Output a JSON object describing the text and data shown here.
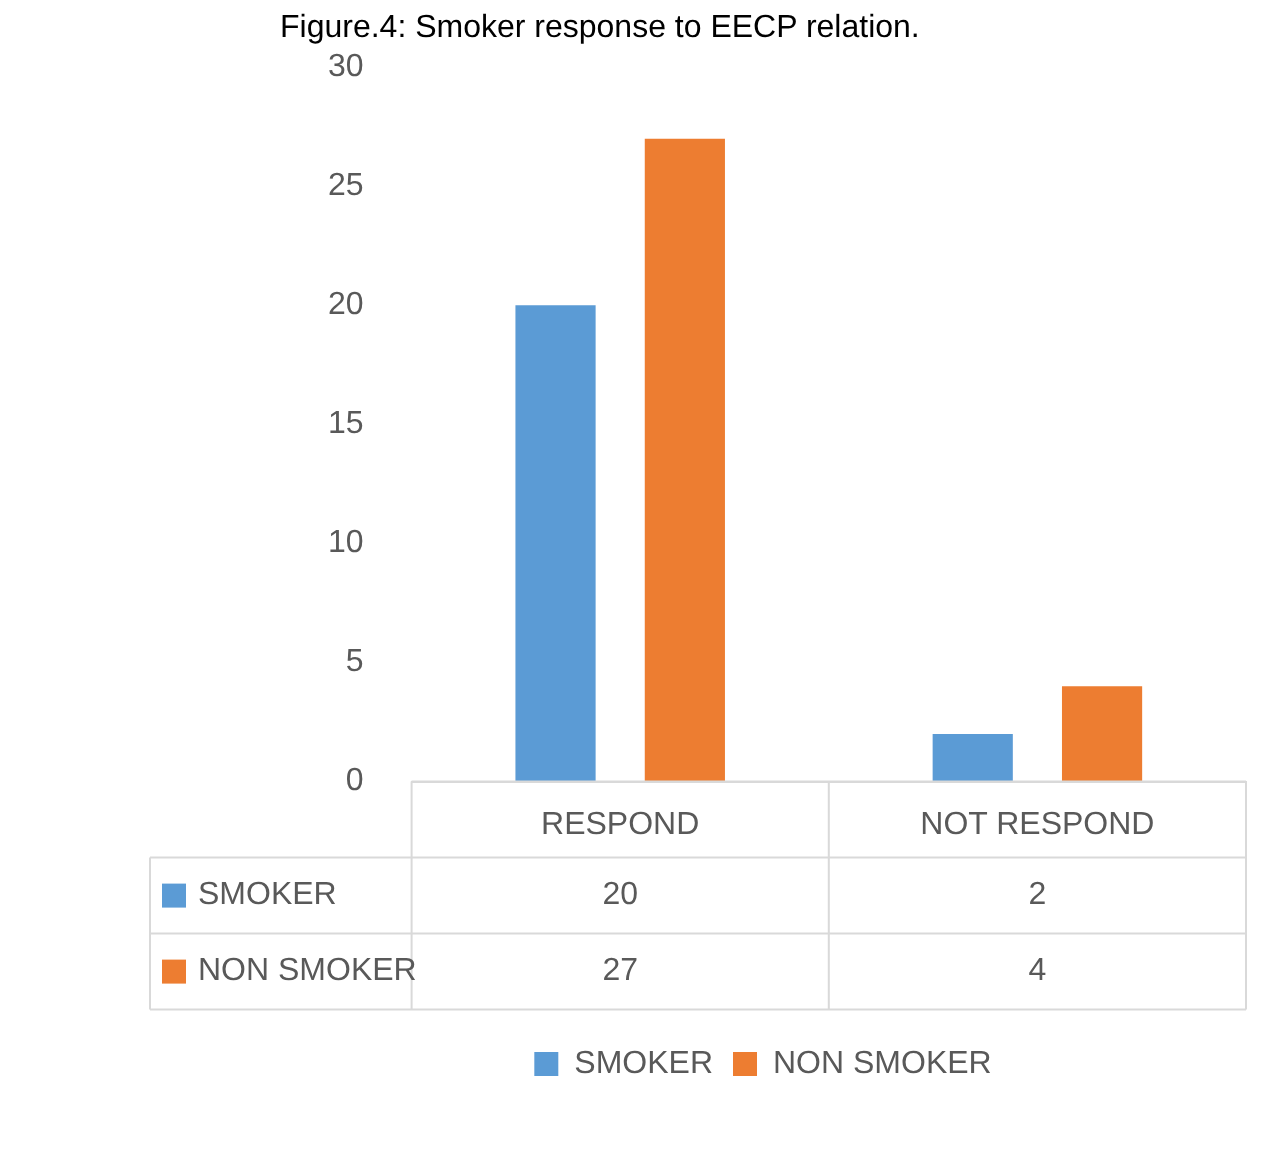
{
  "chart_data": {
    "type": "bar",
    "title": "Figure.4: Smoker response to EECP relation.",
    "categories": [
      "RESPOND",
      "NOT RESPOND"
    ],
    "series": [
      {
        "name": "SMOKER",
        "color": "#5b9bd5",
        "values": [
          20,
          2
        ]
      },
      {
        "name": "NON SMOKER",
        "color": "#ed7d31",
        "values": [
          27,
          4
        ]
      }
    ],
    "ylim": [
      0,
      30
    ],
    "yticks": [
      0,
      5,
      10,
      15,
      20,
      25,
      30
    ],
    "grid": false,
    "legend": "bottom",
    "data_labels": true
  }
}
